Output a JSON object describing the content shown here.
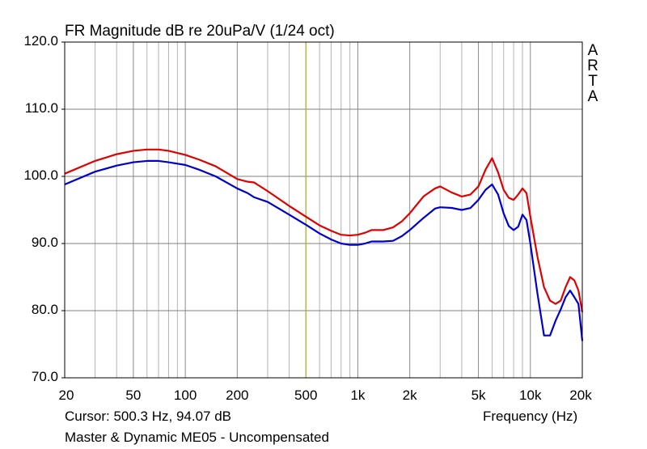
{
  "chart_data": {
    "type": "line",
    "title": "FR Magnitude dB re 20uPa/V (1/24 oct)",
    "xlabel": "Frequency (Hz)",
    "ylabel": "",
    "x_scale": "log",
    "xlim": [
      20,
      20000
    ],
    "ylim": [
      70,
      120
    ],
    "grid": true,
    "x_tick_values": [
      20,
      50,
      100,
      200,
      500,
      1000,
      2000,
      5000,
      10000,
      20000
    ],
    "x_tick_labels": [
      "20",
      "50",
      "100",
      "200",
      "500",
      "1k",
      "2k",
      "5k",
      "10k",
      "20k"
    ],
    "y_tick_values": [
      70,
      80,
      90,
      100,
      110,
      120
    ],
    "y_tick_labels": [
      "70.0",
      "80.0",
      "90.0",
      "100.0",
      "110.0",
      "120.0"
    ],
    "cursor_x": 500.3,
    "series": [
      {
        "color": "#e00000",
        "points": [
          [
            20,
            100.4
          ],
          [
            30,
            102.3
          ],
          [
            40,
            103.3
          ],
          [
            50,
            103.8
          ],
          [
            60,
            104.0
          ],
          [
            70,
            104.0
          ],
          [
            80,
            103.8
          ],
          [
            100,
            103.2
          ],
          [
            120,
            102.5
          ],
          [
            150,
            101.5
          ],
          [
            200,
            99.6
          ],
          [
            230,
            99.2
          ],
          [
            250,
            99.1
          ],
          [
            300,
            97.8
          ],
          [
            400,
            95.6
          ],
          [
            500,
            94.0
          ],
          [
            600,
            92.7
          ],
          [
            700,
            91.9
          ],
          [
            800,
            91.3
          ],
          [
            900,
            91.2
          ],
          [
            1000,
            91.3
          ],
          [
            1100,
            91.6
          ],
          [
            1200,
            92.0
          ],
          [
            1400,
            92.0
          ],
          [
            1600,
            92.4
          ],
          [
            1800,
            93.3
          ],
          [
            2000,
            94.5
          ],
          [
            2400,
            97.0
          ],
          [
            2800,
            98.2
          ],
          [
            3000,
            98.5
          ],
          [
            3500,
            97.6
          ],
          [
            4000,
            97.0
          ],
          [
            4500,
            97.3
          ],
          [
            5000,
            98.5
          ],
          [
            5500,
            101.0
          ],
          [
            6000,
            102.7
          ],
          [
            6500,
            100.6
          ],
          [
            7000,
            98.0
          ],
          [
            7500,
            96.8
          ],
          [
            8000,
            96.5
          ],
          [
            8500,
            97.3
          ],
          [
            9000,
            98.2
          ],
          [
            9500,
            97.5
          ],
          [
            10000,
            94.0
          ],
          [
            11000,
            88.0
          ],
          [
            12000,
            83.5
          ],
          [
            13000,
            81.5
          ],
          [
            14000,
            81.0
          ],
          [
            15000,
            81.5
          ],
          [
            16000,
            83.5
          ],
          [
            17000,
            85.0
          ],
          [
            18000,
            84.5
          ],
          [
            19000,
            83.0
          ],
          [
            20000,
            79.8
          ]
        ]
      },
      {
        "color": "#0000cc",
        "points": [
          [
            20,
            98.8
          ],
          [
            30,
            100.7
          ],
          [
            40,
            101.6
          ],
          [
            50,
            102.1
          ],
          [
            60,
            102.3
          ],
          [
            70,
            102.3
          ],
          [
            80,
            102.1
          ],
          [
            100,
            101.7
          ],
          [
            120,
            101.0
          ],
          [
            150,
            100.0
          ],
          [
            200,
            98.2
          ],
          [
            230,
            97.5
          ],
          [
            250,
            96.9
          ],
          [
            300,
            96.2
          ],
          [
            400,
            94.3
          ],
          [
            500,
            92.8
          ],
          [
            600,
            91.5
          ],
          [
            700,
            90.6
          ],
          [
            800,
            90.0
          ],
          [
            900,
            89.8
          ],
          [
            1000,
            89.8
          ],
          [
            1100,
            90.0
          ],
          [
            1200,
            90.3
          ],
          [
            1400,
            90.3
          ],
          [
            1600,
            90.4
          ],
          [
            1800,
            91.1
          ],
          [
            2000,
            92.0
          ],
          [
            2400,
            93.8
          ],
          [
            2800,
            95.2
          ],
          [
            3000,
            95.4
          ],
          [
            3500,
            95.3
          ],
          [
            4000,
            95.0
          ],
          [
            4500,
            95.3
          ],
          [
            5000,
            96.5
          ],
          [
            5500,
            98.0
          ],
          [
            6000,
            98.8
          ],
          [
            6500,
            97.3
          ],
          [
            7000,
            94.5
          ],
          [
            7500,
            92.6
          ],
          [
            8000,
            92.0
          ],
          [
            8500,
            92.5
          ],
          [
            9000,
            94.3
          ],
          [
            9500,
            93.5
          ],
          [
            10000,
            90.0
          ],
          [
            11000,
            82.5
          ],
          [
            12000,
            76.3
          ],
          [
            13000,
            76.3
          ],
          [
            14000,
            78.5
          ],
          [
            15000,
            80.2
          ],
          [
            16000,
            82.0
          ],
          [
            17000,
            83.0
          ],
          [
            18000,
            82.0
          ],
          [
            19000,
            81.0
          ],
          [
            20000,
            75.5
          ]
        ]
      }
    ]
  },
  "cursor_readout": "Cursor: 500.3 Hz, 94.07 dB",
  "footer": "Master & Dynamic ME05 - Uncompensated",
  "watermark": [
    "A",
    "R",
    "T",
    "A"
  ],
  "colors": {
    "grid": "#808080",
    "cursor": "#b5b500",
    "frame": "#000000"
  }
}
